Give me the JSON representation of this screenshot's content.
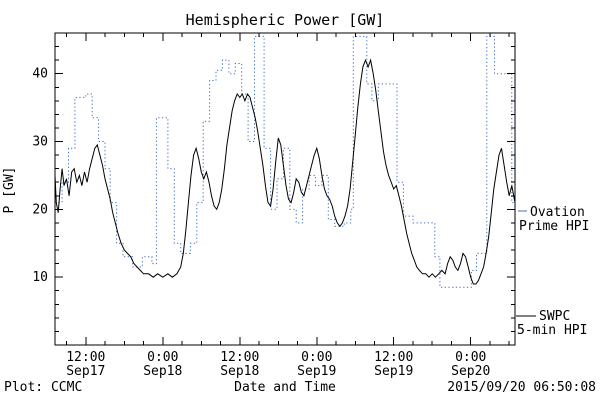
{
  "colors": {
    "ovation": "#4472c4",
    "swpc": "#000000",
    "background": "#ffffff"
  },
  "legend": {
    "ovation": {
      "line1": "Ovation",
      "line2": "Prime HPI"
    },
    "swpc": {
      "line1": "SWPC",
      "line2": "5-min HPI"
    }
  },
  "footer": {
    "plot_credit": "Plot: CCMC",
    "timestamp": "2015/09/20 06:50:08"
  },
  "chart_data": {
    "type": "line",
    "title": "Hemispheric Power [GW]",
    "xlabel": "Date and Time",
    "ylabel": "P [GW]",
    "xlim_hours": [
      7.2,
      78.9
    ],
    "ylim": [
      0,
      46
    ],
    "y_ticks": [
      10,
      20,
      30,
      40
    ],
    "x_ticks": [
      {
        "hour": 12,
        "time": "12:00",
        "date": "Sep17"
      },
      {
        "hour": 24,
        "time": "0:00",
        "date": "Sep18"
      },
      {
        "hour": 36,
        "time": "12:00",
        "date": "Sep18"
      },
      {
        "hour": 48,
        "time": "0:00",
        "date": "Sep19"
      },
      {
        "hour": 60,
        "time": "12:00",
        "date": "Sep19"
      },
      {
        "hour": 72,
        "time": "0:00",
        "date": "Sep20"
      }
    ],
    "series": [
      {
        "id": "ovation",
        "name": "Ovation Prime HPI",
        "color": "#4472c4",
        "style": "dotted",
        "interpolation": "step",
        "points": [
          [
            7.2,
            21
          ],
          [
            8.3,
            24
          ],
          [
            9.3,
            29
          ],
          [
            10.3,
            36.5
          ],
          [
            12,
            37
          ],
          [
            13,
            33.5
          ],
          [
            14,
            30
          ],
          [
            15,
            26
          ],
          [
            15.8,
            21
          ],
          [
            16.8,
            15
          ],
          [
            17.8,
            13
          ],
          [
            19.3,
            11.5
          ],
          [
            20.8,
            13
          ],
          [
            22.3,
            12
          ],
          [
            23,
            33.5
          ],
          [
            24.8,
            26
          ],
          [
            25.8,
            15
          ],
          [
            26.8,
            13.5
          ],
          [
            28.3,
            15
          ],
          [
            29.3,
            21
          ],
          [
            30.3,
            33
          ],
          [
            31.3,
            39
          ],
          [
            32.3,
            40.5
          ],
          [
            33.3,
            42
          ],
          [
            34.3,
            40
          ],
          [
            35.3,
            41.5
          ],
          [
            36.3,
            37
          ],
          [
            37.3,
            30
          ],
          [
            38.3,
            45.5
          ],
          [
            39.8,
            29
          ],
          [
            40.8,
            20
          ],
          [
            41.8,
            24.5
          ],
          [
            42.8,
            29
          ],
          [
            43.8,
            20
          ],
          [
            44.8,
            18
          ],
          [
            45.8,
            23
          ],
          [
            46.8,
            25
          ],
          [
            47.8,
            23.5
          ],
          [
            48.8,
            25
          ],
          [
            49.8,
            18.5
          ],
          [
            50.8,
            17.5
          ],
          [
            52.3,
            18
          ],
          [
            53.3,
            20
          ],
          [
            53.7,
            45.5
          ],
          [
            55.8,
            38.5
          ],
          [
            56.6,
            36
          ],
          [
            57.6,
            38.5
          ],
          [
            60.5,
            24
          ],
          [
            61.5,
            19
          ],
          [
            63,
            18
          ],
          [
            66.4,
            13
          ],
          [
            67.2,
            8.5
          ],
          [
            72.1,
            11
          ],
          [
            72.9,
            13.5
          ],
          [
            74.5,
            45.5
          ],
          [
            75.7,
            40
          ],
          [
            78.4,
            21
          ],
          [
            78.9,
            21
          ]
        ]
      },
      {
        "id": "swpc",
        "name": "SWPC 5-min HPI",
        "color": "#000000",
        "style": "solid",
        "interpolation": "linear",
        "points": [
          [
            7.2,
            25
          ],
          [
            7.4,
            21
          ],
          [
            7.7,
            19.5
          ],
          [
            8,
            23
          ],
          [
            8.3,
            26
          ],
          [
            8.6,
            23.5
          ],
          [
            9,
            24.5
          ],
          [
            9.4,
            22
          ],
          [
            9.8,
            25.5
          ],
          [
            10.2,
            26
          ],
          [
            10.6,
            24
          ],
          [
            11,
            25
          ],
          [
            11.4,
            23.5
          ],
          [
            11.8,
            25.5
          ],
          [
            12.2,
            24
          ],
          [
            12.6,
            26
          ],
          [
            13,
            27.5
          ],
          [
            13.4,
            29
          ],
          [
            13.8,
            29.5
          ],
          [
            14.2,
            28
          ],
          [
            14.6,
            26.5
          ],
          [
            15,
            24.5
          ],
          [
            15.4,
            23
          ],
          [
            15.8,
            21.5
          ],
          [
            16.2,
            19.5
          ],
          [
            16.6,
            18
          ],
          [
            17,
            16.5
          ],
          [
            17.5,
            15
          ],
          [
            18,
            14
          ],
          [
            18.5,
            13.5
          ],
          [
            19,
            13
          ],
          [
            19.5,
            12
          ],
          [
            20,
            11.5
          ],
          [
            20.5,
            11
          ],
          [
            21,
            10.5
          ],
          [
            21.8,
            10.5
          ],
          [
            22.5,
            10
          ],
          [
            23.2,
            10.5
          ],
          [
            24,
            10
          ],
          [
            24.8,
            10.5
          ],
          [
            25.5,
            10
          ],
          [
            26.2,
            10.5
          ],
          [
            26.8,
            11.5
          ],
          [
            27.2,
            13.5
          ],
          [
            27.6,
            17
          ],
          [
            28,
            21
          ],
          [
            28.4,
            25
          ],
          [
            28.8,
            28
          ],
          [
            29.2,
            29
          ],
          [
            29.6,
            27.5
          ],
          [
            30,
            25.5
          ],
          [
            30.4,
            24.5
          ],
          [
            30.8,
            25.5
          ],
          [
            31.2,
            24
          ],
          [
            31.6,
            22
          ],
          [
            32,
            20.5
          ],
          [
            32.4,
            20
          ],
          [
            32.8,
            21
          ],
          [
            33.2,
            23
          ],
          [
            33.6,
            26
          ],
          [
            34,
            29.5
          ],
          [
            34.4,
            32
          ],
          [
            34.8,
            34.5
          ],
          [
            35.2,
            36
          ],
          [
            35.6,
            37
          ],
          [
            36,
            36.5
          ],
          [
            36.4,
            37
          ],
          [
            36.8,
            36
          ],
          [
            37.2,
            37
          ],
          [
            37.6,
            36.5
          ],
          [
            38,
            35
          ],
          [
            38.4,
            33.5
          ],
          [
            38.8,
            31.5
          ],
          [
            39.2,
            29
          ],
          [
            39.6,
            26.5
          ],
          [
            40,
            23.5
          ],
          [
            40.4,
            21
          ],
          [
            40.8,
            20.5
          ],
          [
            41.2,
            23
          ],
          [
            41.6,
            27
          ],
          [
            42,
            30.5
          ],
          [
            42.4,
            29.5
          ],
          [
            42.8,
            26.5
          ],
          [
            43.2,
            23.5
          ],
          [
            43.6,
            21.5
          ],
          [
            44,
            21
          ],
          [
            44.4,
            22.5
          ],
          [
            44.8,
            24.5
          ],
          [
            45.2,
            24
          ],
          [
            45.6,
            22.5
          ],
          [
            46,
            22
          ],
          [
            46.4,
            23.5
          ],
          [
            46.8,
            25
          ],
          [
            47.2,
            26.5
          ],
          [
            47.6,
            28
          ],
          [
            48,
            29
          ],
          [
            48.4,
            27.5
          ],
          [
            48.8,
            25
          ],
          [
            49.2,
            23
          ],
          [
            49.6,
            22
          ],
          [
            50,
            21.5
          ],
          [
            50.4,
            20.5
          ],
          [
            50.8,
            19
          ],
          [
            51.2,
            18
          ],
          [
            51.6,
            17.5
          ],
          [
            52,
            18
          ],
          [
            52.4,
            19
          ],
          [
            52.8,
            20.5
          ],
          [
            53.2,
            23
          ],
          [
            53.6,
            27
          ],
          [
            54,
            31
          ],
          [
            54.4,
            35
          ],
          [
            54.8,
            38.5
          ],
          [
            55.2,
            41
          ],
          [
            55.6,
            42
          ],
          [
            56,
            41
          ],
          [
            56.4,
            42
          ],
          [
            56.8,
            40
          ],
          [
            57.2,
            37.5
          ],
          [
            57.6,
            34.5
          ],
          [
            58,
            31.5
          ],
          [
            58.4,
            28.5
          ],
          [
            58.8,
            26.5
          ],
          [
            59.2,
            25
          ],
          [
            59.6,
            24
          ],
          [
            60,
            23
          ],
          [
            60.4,
            23.5
          ],
          [
            60.8,
            22
          ],
          [
            61.2,
            20.5
          ],
          [
            61.6,
            18.5
          ],
          [
            62,
            16.5
          ],
          [
            62.4,
            15
          ],
          [
            62.8,
            13.5
          ],
          [
            63.2,
            12.5
          ],
          [
            63.6,
            11.5
          ],
          [
            64,
            11
          ],
          [
            64.5,
            10.5
          ],
          [
            65,
            10.5
          ],
          [
            65.5,
            10
          ],
          [
            66,
            10.5
          ],
          [
            66.5,
            10
          ],
          [
            67,
            10.5
          ],
          [
            67.5,
            11
          ],
          [
            68,
            10.5
          ],
          [
            68.4,
            12
          ],
          [
            68.8,
            13
          ],
          [
            69.2,
            12.5
          ],
          [
            69.6,
            11.5
          ],
          [
            70,
            11
          ],
          [
            70.4,
            12
          ],
          [
            70.8,
            13.5
          ],
          [
            71.2,
            13
          ],
          [
            71.6,
            11.5
          ],
          [
            72,
            10
          ],
          [
            72.4,
            9
          ],
          [
            72.8,
            9
          ],
          [
            73.2,
            9.5
          ],
          [
            73.6,
            10.5
          ],
          [
            74,
            11.5
          ],
          [
            74.4,
            13.5
          ],
          [
            74.8,
            16
          ],
          [
            75.2,
            19.5
          ],
          [
            75.6,
            23
          ],
          [
            76,
            25.5
          ],
          [
            76.4,
            28
          ],
          [
            76.8,
            29
          ],
          [
            77.2,
            26.5
          ],
          [
            77.6,
            24
          ],
          [
            78,
            22
          ],
          [
            78.4,
            23.5
          ],
          [
            78.9,
            21
          ]
        ]
      }
    ]
  }
}
